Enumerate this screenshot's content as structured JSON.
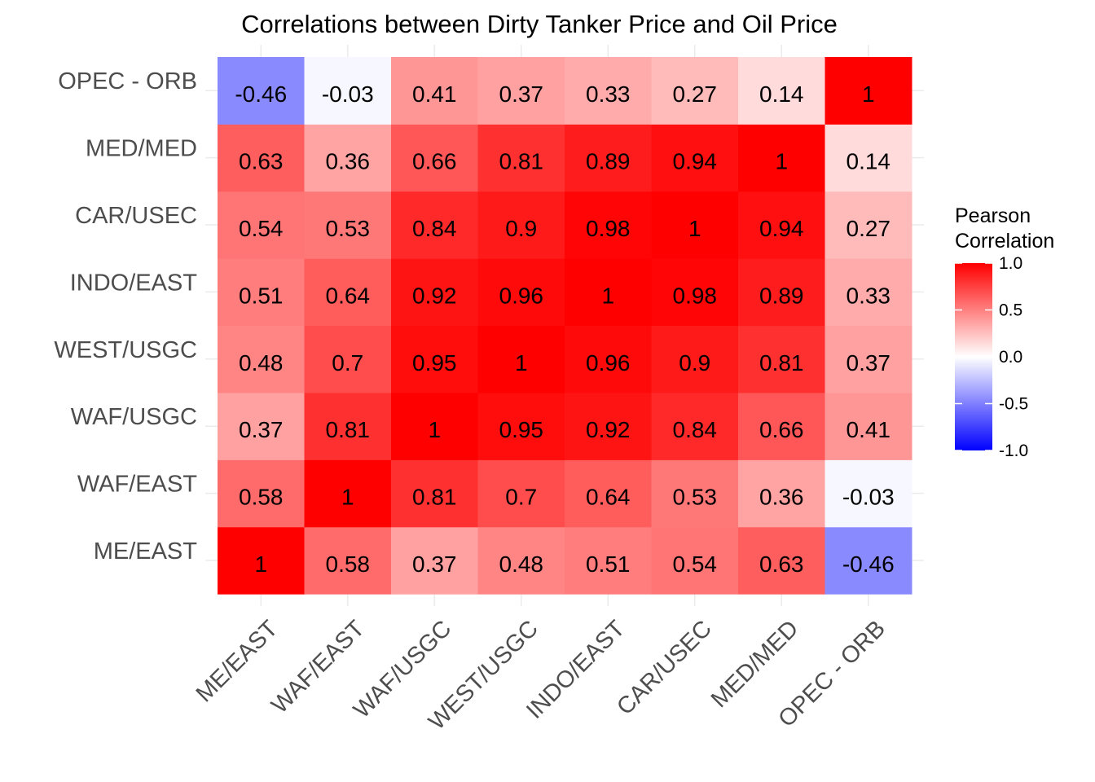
{
  "chart_data": {
    "type": "heatmap",
    "title": "Correlations between Dirty Tanker Price and Oil Price",
    "x_categories": [
      "ME/EAST",
      "WAF/EAST",
      "WAF/USGC",
      "WEST/USGC",
      "INDO/EAST",
      "CAR/USEC",
      "MED/MED",
      "OPEC - ORB"
    ],
    "y_categories": [
      "ME/EAST",
      "WAF/EAST",
      "WAF/USGC",
      "WEST/USGC",
      "INDO/EAST",
      "CAR/USEC",
      "MED/MED",
      "OPEC - ORB"
    ],
    "matrix": [
      [
        1,
        0.58,
        0.37,
        0.48,
        0.51,
        0.54,
        0.63,
        -0.46
      ],
      [
        0.58,
        1,
        0.81,
        0.7,
        0.64,
        0.53,
        0.36,
        -0.03
      ],
      [
        0.37,
        0.81,
        1,
        0.95,
        0.92,
        0.84,
        0.66,
        0.41
      ],
      [
        0.48,
        0.7,
        0.95,
        1,
        0.96,
        0.9,
        0.81,
        0.37
      ],
      [
        0.51,
        0.64,
        0.92,
        0.96,
        1,
        0.98,
        0.89,
        0.33
      ],
      [
        0.54,
        0.53,
        0.84,
        0.9,
        0.98,
        1,
        0.94,
        0.27
      ],
      [
        0.63,
        0.36,
        0.66,
        0.81,
        0.89,
        0.94,
        1,
        0.14
      ],
      [
        -0.46,
        -0.03,
        0.41,
        0.37,
        0.33,
        0.27,
        0.14,
        1
      ]
    ],
    "legend": {
      "title_lines": [
        "Pearson",
        "Correlation"
      ],
      "ticks": [
        1.0,
        0.5,
        0.0,
        -0.5,
        -1.0
      ],
      "tick_labels": [
        "1.0",
        "0.5",
        "0.0",
        "-0.5",
        "-1.0"
      ],
      "range": [
        -1,
        1
      ],
      "colors": {
        "low": "#0000ff",
        "mid": "#ffffff",
        "high": "#ff0000"
      },
      "placement": "right"
    },
    "grid": true
  }
}
